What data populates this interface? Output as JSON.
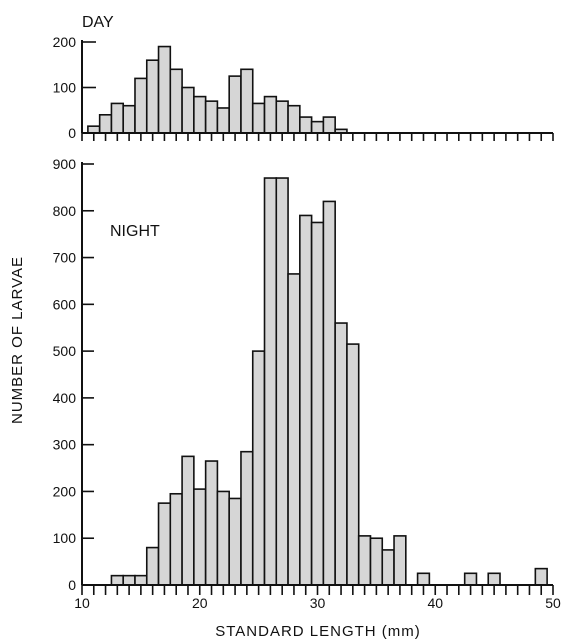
{
  "chart_data": {
    "type": "bar",
    "xlabel": "STANDARD LENGTH (mm)",
    "ylabel": "NUMBER OF LARVAE",
    "x_ticks": [
      10,
      20,
      30,
      40,
      50
    ],
    "xlim": [
      10,
      50
    ],
    "panels": [
      {
        "name": "DAY",
        "ylim": [
          0,
          200
        ],
        "y_ticks": [
          0,
          100,
          200
        ],
        "x": [
          11,
          12,
          13,
          14,
          15,
          16,
          17,
          18,
          19,
          20,
          21,
          22,
          23,
          24,
          25,
          26,
          27,
          28,
          29,
          30,
          31,
          32,
          33
        ],
        "values": [
          15,
          40,
          65,
          60,
          120,
          160,
          190,
          140,
          100,
          80,
          70,
          55,
          125,
          140,
          65,
          80,
          70,
          60,
          35,
          25,
          35,
          8,
          0
        ]
      },
      {
        "name": "NIGHT",
        "ylim": [
          0,
          900
        ],
        "y_ticks": [
          0,
          100,
          200,
          300,
          400,
          500,
          600,
          700,
          800,
          900
        ],
        "x": [
          13,
          14,
          15,
          16,
          17,
          18,
          19,
          20,
          21,
          22,
          23,
          24,
          25,
          26,
          27,
          28,
          29,
          30,
          31,
          32,
          33,
          34,
          35,
          36,
          37,
          38,
          39,
          40,
          41,
          42,
          43,
          44,
          45,
          46,
          47,
          48,
          49
        ],
        "values": [
          20,
          20,
          20,
          80,
          175,
          195,
          275,
          205,
          265,
          200,
          185,
          285,
          500,
          870,
          870,
          665,
          790,
          775,
          820,
          560,
          515,
          105,
          100,
          75,
          105,
          0,
          25,
          0,
          0,
          0,
          25,
          0,
          25,
          0,
          0,
          0,
          35
        ]
      }
    ]
  }
}
